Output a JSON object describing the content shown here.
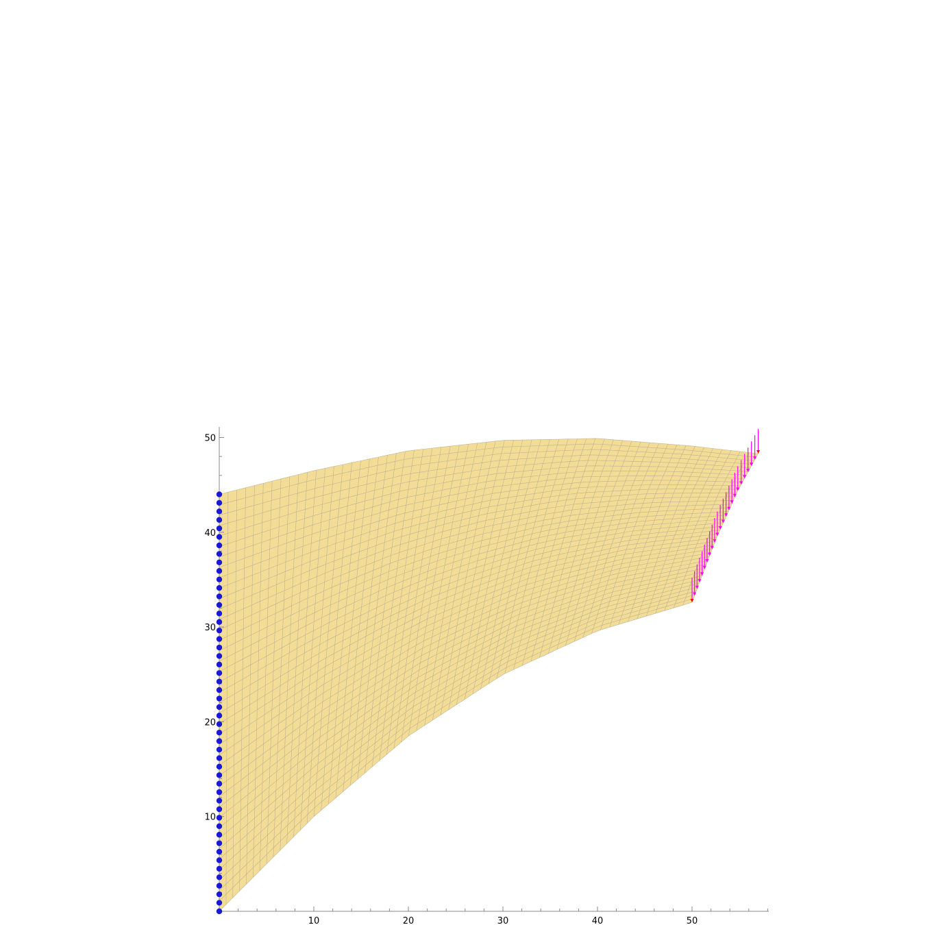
{
  "chart_data": {
    "type": "mesh-deformation",
    "xlim": [
      0,
      58
    ],
    "ylim": [
      0,
      51
    ],
    "x_ticks": [
      {
        "value": 10,
        "label": "10"
      },
      {
        "value": 20,
        "label": "20"
      },
      {
        "value": 30,
        "label": "30"
      },
      {
        "value": 40,
        "label": "40"
      },
      {
        "value": 50,
        "label": "50"
      }
    ],
    "y_ticks": [
      {
        "value": 10,
        "label": "10"
      },
      {
        "value": 20,
        "label": "20"
      },
      {
        "value": 30,
        "label": "30"
      },
      {
        "value": 40,
        "label": "40"
      },
      {
        "value": 50,
        "label": "50"
      }
    ],
    "minor_tick_step": 2,
    "boundaries": {
      "left": [
        [
          0,
          0
        ],
        [
          0,
          44
        ]
      ],
      "bottom": [
        [
          0,
          0
        ],
        [
          10,
          10
        ],
        [
          20,
          18.5
        ],
        [
          30,
          25
        ],
        [
          40,
          29.6
        ],
        [
          50,
          32.6
        ]
      ],
      "top": [
        [
          0,
          44
        ],
        [
          10,
          46.5
        ],
        [
          20,
          48.6
        ],
        [
          30,
          49.7
        ],
        [
          40,
          49.9
        ],
        [
          50,
          49.1
        ],
        [
          57,
          48.3
        ]
      ],
      "right": [
        [
          50,
          32.6
        ],
        [
          52.5,
          39.2
        ],
        [
          54.8,
          44.3
        ],
        [
          57,
          48.3
        ]
      ]
    },
    "mesh": {
      "u_divisions": 60,
      "v_divisions": 40
    },
    "fixed_support_points": {
      "x": 0,
      "y_min": 0,
      "y_max": 44,
      "count": 50
    },
    "load_arrows": {
      "count": 24,
      "length": 2.6
    },
    "colors": {
      "mesh_fill": "#f2dc96",
      "mesh_line": "#b3ab93",
      "support": "#1a1ad6",
      "load_arrow": "#ff00ff",
      "load_arrow_end": "#ff0000",
      "axis": "#888888"
    }
  }
}
